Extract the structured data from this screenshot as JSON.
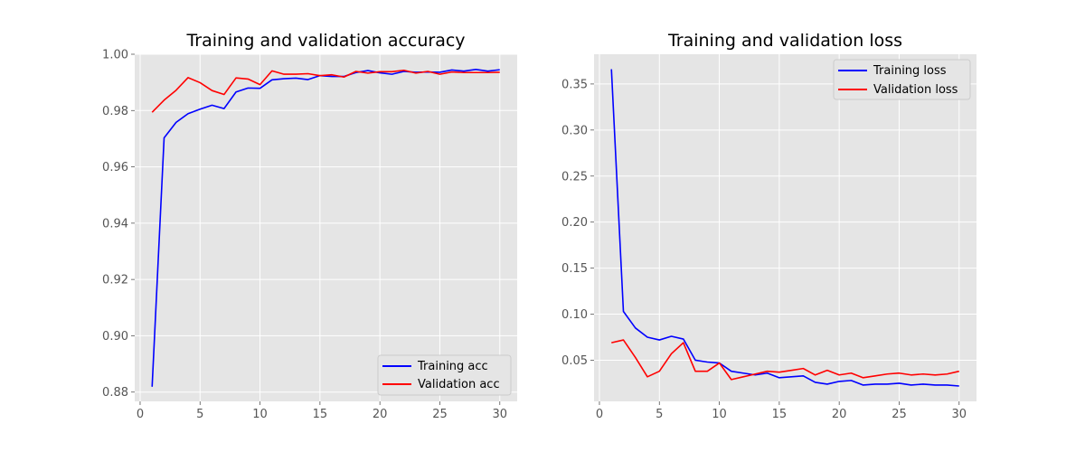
{
  "chart_data": [
    {
      "type": "line",
      "title": "Training and validation accuracy",
      "xlabel": "",
      "ylabel": "",
      "xlim": [
        -0.45,
        31.45
      ],
      "ylim": [
        0.8767,
        1.0
      ],
      "xticks": [
        0,
        5,
        10,
        15,
        20,
        25,
        30
      ],
      "yticks": [
        0.88,
        0.9,
        0.92,
        0.94,
        0.96,
        0.98,
        1.0
      ],
      "ytick_labels": [
        "0.88",
        "0.90",
        "0.92",
        "0.94",
        "0.96",
        "0.98",
        "1.00"
      ],
      "grid": true,
      "legend_position": "bottom-right",
      "x": [
        1,
        2,
        3,
        4,
        5,
        6,
        7,
        8,
        9,
        10,
        11,
        12,
        13,
        14,
        15,
        16,
        17,
        18,
        19,
        20,
        21,
        22,
        23,
        24,
        25,
        26,
        27,
        28,
        29,
        30
      ],
      "series": [
        {
          "name": "Training acc",
          "color": "#0000ff",
          "values": [
            0.8819,
            0.9703,
            0.9758,
            0.9789,
            0.9805,
            0.9819,
            0.9807,
            0.9866,
            0.988,
            0.9879,
            0.9909,
            0.9913,
            0.9915,
            0.991,
            0.9924,
            0.9921,
            0.9921,
            0.9935,
            0.9942,
            0.9934,
            0.9929,
            0.9939,
            0.9936,
            0.9937,
            0.9936,
            0.9944,
            0.994,
            0.9946,
            0.994,
            0.9945
          ]
        },
        {
          "name": "Validation acc",
          "color": "#ff0000",
          "values": [
            0.9794,
            0.9837,
            0.9872,
            0.9917,
            0.9899,
            0.9871,
            0.9857,
            0.9916,
            0.9912,
            0.9892,
            0.9941,
            0.9929,
            0.9929,
            0.9931,
            0.9924,
            0.9927,
            0.9919,
            0.9939,
            0.9933,
            0.9938,
            0.9938,
            0.9943,
            0.9933,
            0.9939,
            0.9929,
            0.9937,
            0.9935,
            0.9935,
            0.9935,
            0.9936
          ]
        }
      ]
    },
    {
      "type": "line",
      "title": "Training and validation loss",
      "xlabel": "",
      "ylabel": "",
      "xlim": [
        -0.45,
        31.45
      ],
      "ylim": [
        0.0053,
        0.3823
      ],
      "xticks": [
        0,
        5,
        10,
        15,
        20,
        25,
        30
      ],
      "yticks": [
        0.05,
        0.1,
        0.15,
        0.2,
        0.25,
        0.3,
        0.35
      ],
      "ytick_labels": [
        "0.05",
        "0.10",
        "0.15",
        "0.20",
        "0.25",
        "0.30",
        "0.35"
      ],
      "grid": true,
      "legend_position": "top-right",
      "x": [
        1,
        2,
        3,
        4,
        5,
        6,
        7,
        8,
        9,
        10,
        11,
        12,
        13,
        14,
        15,
        16,
        17,
        18,
        19,
        20,
        21,
        22,
        23,
        24,
        25,
        26,
        27,
        28,
        29,
        30
      ],
      "series": [
        {
          "name": "Training loss",
          "color": "#0000ff",
          "values": [
            0.366,
            0.103,
            0.085,
            0.075,
            0.072,
            0.076,
            0.073,
            0.05,
            0.048,
            0.047,
            0.038,
            0.036,
            0.034,
            0.036,
            0.031,
            0.032,
            0.033,
            0.026,
            0.024,
            0.027,
            0.028,
            0.023,
            0.024,
            0.024,
            0.025,
            0.023,
            0.024,
            0.023,
            0.023,
            0.022
          ]
        },
        {
          "name": "Validation loss",
          "color": "#ff0000",
          "values": [
            0.069,
            0.072,
            0.053,
            0.032,
            0.038,
            0.057,
            0.069,
            0.038,
            0.038,
            0.047,
            0.029,
            0.032,
            0.035,
            0.038,
            0.037,
            0.039,
            0.041,
            0.034,
            0.039,
            0.034,
            0.036,
            0.031,
            0.033,
            0.035,
            0.036,
            0.034,
            0.035,
            0.034,
            0.035,
            0.038
          ]
        }
      ]
    }
  ]
}
